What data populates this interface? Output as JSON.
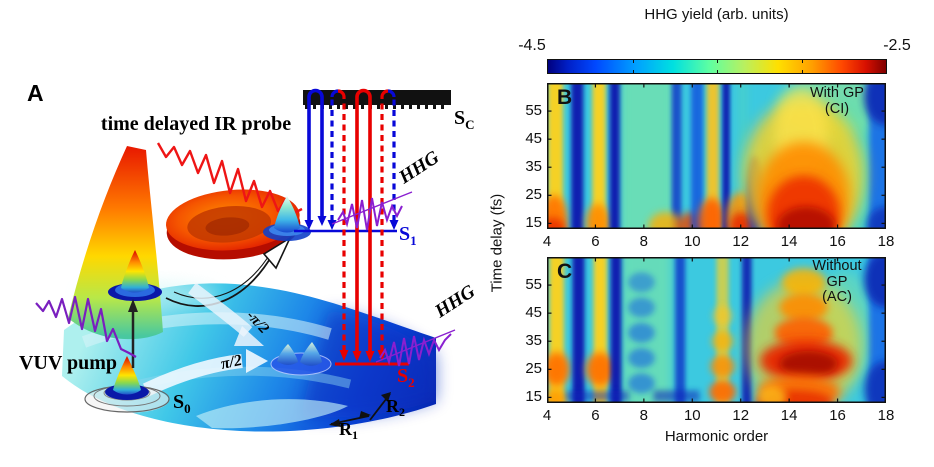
{
  "panel_a": {
    "label": "A",
    "ir_probe_label": "time delayed IR probe",
    "vuv_pump_label": "VUV pump",
    "hhg_upper": "HHG",
    "hhg_lower": "HHG",
    "phase_upper": "-π/2",
    "phase_lower": "π/2",
    "s0": {
      "main": "S",
      "sub": "0"
    },
    "s1": {
      "main": "S",
      "sub": "1"
    },
    "s2": {
      "main": "S",
      "sub": "2"
    },
    "sc": {
      "main": "S",
      "sub": "C"
    },
    "r1": {
      "main": "R",
      "sub": "1"
    },
    "r2": {
      "main": "R",
      "sub": "2"
    },
    "colors": {
      "s1_level": "#0808d8",
      "s2_level": "#e80000",
      "pulse_purple": "#7a1fbf",
      "ir_probe_red": "#ee1515"
    }
  },
  "colorbar": {
    "title": "HHG yield (arb. units)",
    "min": "-4.5",
    "max": "-2.5"
  },
  "panel_b": {
    "label": "B",
    "annotation": [
      "With GP",
      "(CI)"
    ]
  },
  "panel_c": {
    "label": "C",
    "annotation": [
      "Without",
      "GP",
      "(AC)"
    ]
  },
  "axes": {
    "x_title": "Harmonic order",
    "y_title": "Time delay (fs)"
  },
  "chart_data": [
    {
      "type": "heatmap",
      "panel": "B",
      "condition": "With GP (CI)",
      "xlabel": "Harmonic order",
      "ylabel": "Time delay (fs)",
      "xlim": [
        4,
        18
      ],
      "ylim": [
        13,
        65
      ],
      "x_ticks": [
        4,
        6,
        8,
        10,
        12,
        14,
        16,
        18
      ],
      "y_ticks": [
        15,
        25,
        35,
        45,
        55
      ],
      "colorbar_label": "HHG yield (arb. units)",
      "colorbar_log10_range": [
        -4.5,
        -2.5
      ],
      "description": "Smooth vertical interference stripes, no beating along delay; bright yellow stripes near harmonics 4.4, 6.1, 10.9; dark blue stripes near 5.3, 6.8, 9.4, 11.4; broad smooth red maximum (~-2.5) fanning around harmonic 14.5 for delays 13-40 fs; dark blue at right edge 17.5-18.",
      "base_color": "#3cc9e0",
      "layers": [
        {
          "t": "stripe",
          "h": 8.15,
          "w": 2.3,
          "c": "#7ce6a6",
          "o": 0.7,
          "b": 5
        },
        {
          "t": "blob",
          "h": 15.9,
          "d": 57,
          "rh": 2.4,
          "rd": 11,
          "c": "#8fe49a",
          "o": 0.7,
          "b": 6
        },
        {
          "t": "blob",
          "h": 16.6,
          "d": 35,
          "rh": 1.1,
          "rd": 26,
          "c": "#62dfae",
          "o": 0.55,
          "b": 6
        },
        {
          "t": "stripe",
          "h": 17.8,
          "w": 1.0,
          "c": "#1465e8",
          "o": 0.85,
          "b": 3
        },
        {
          "t": "blob",
          "h": 18.0,
          "d": 60,
          "rh": 0.9,
          "rd": 10,
          "c": "#0a2bb4",
          "o": 0.9,
          "b": 4
        },
        {
          "t": "blob",
          "h": 18.0,
          "d": 14,
          "rh": 0.8,
          "rd": 7,
          "c": "#0a2bb4",
          "o": 0.75,
          "b": 4
        },
        {
          "t": "stripe",
          "h": 12.1,
          "w": 0.5,
          "c": "#49d0c8",
          "o": 0.6,
          "b": 3
        },
        {
          "t": "stripe",
          "h": 4.35,
          "w": 0.62,
          "c": "#ffd21e",
          "o": 0.95,
          "b": 2.5
        },
        {
          "t": "blob",
          "h": 4.3,
          "d": 16,
          "rh": 0.55,
          "rd": 9,
          "c": "#ff7300",
          "o": 0.9,
          "b": 4
        },
        {
          "t": "blob",
          "h": 4.25,
          "d": 13,
          "rh": 0.5,
          "rd": 4,
          "c": "#e83000",
          "o": 0.9,
          "b": 4
        },
        {
          "t": "stripe",
          "h": 5.25,
          "w": 0.5,
          "c": "#0718ae",
          "o": 0.95,
          "b": 2
        },
        {
          "t": "stripe",
          "h": 6.15,
          "w": 0.55,
          "c": "#ffd21e",
          "o": 0.95,
          "b": 2.5
        },
        {
          "t": "blob",
          "h": 6.1,
          "d": 15,
          "rh": 0.5,
          "rd": 7,
          "c": "#ff8c00",
          "o": 0.9,
          "b": 4
        },
        {
          "t": "stripe",
          "h": 6.8,
          "w": 0.42,
          "c": "#0718ae",
          "o": 0.95,
          "b": 2
        },
        {
          "t": "stripe",
          "h": 9.35,
          "w": 0.4,
          "c": "#0a30c8",
          "o": 0.8,
          "b": 2
        },
        {
          "t": "blob",
          "h": 8.9,
          "d": 14,
          "rh": 0.7,
          "rd": 5,
          "c": "#ffae00",
          "o": 0.8,
          "b": 4
        },
        {
          "t": "blob",
          "h": 9.9,
          "d": 14,
          "rh": 0.5,
          "rd": 5,
          "c": "#e84400",
          "o": 0.8,
          "b": 4
        },
        {
          "t": "stripe",
          "h": 10.2,
          "w": 0.5,
          "c": "#0d47dd",
          "o": 0.75,
          "b": 2.5
        },
        {
          "t": "stripe",
          "h": 10.85,
          "w": 0.5,
          "c": "#ffc41e",
          "o": 0.9,
          "b": 2.5
        },
        {
          "t": "blob",
          "h": 10.8,
          "d": 16,
          "rh": 0.55,
          "rd": 8,
          "c": "#ff5e00",
          "o": 0.9,
          "b": 4
        },
        {
          "t": "stripe",
          "h": 11.4,
          "w": 0.32,
          "c": "#0718ae",
          "o": 0.9,
          "b": 1.8
        },
        {
          "t": "blob",
          "h": 12.0,
          "d": 17,
          "rh": 0.6,
          "rd": 9,
          "c": "#ff9000",
          "o": 0.85,
          "b": 4
        },
        {
          "t": "blob",
          "h": 12.05,
          "d": 14,
          "rh": 0.5,
          "rd": 5,
          "c": "#e82800",
          "o": 0.85,
          "b": 4
        },
        {
          "t": "blob",
          "h": 12.6,
          "d": 24,
          "rh": 0.35,
          "rd": 15,
          "c": "#0a23b8",
          "o": 0.8,
          "b": 3
        },
        {
          "t": "blob",
          "h": 13.15,
          "d": 19,
          "rh": 0.3,
          "rd": 11,
          "c": "#0a23b8",
          "o": 0.75,
          "b": 3
        },
        {
          "t": "blob",
          "h": 14.6,
          "d": 32,
          "rh": 2.5,
          "rd": 27,
          "c": "#ffd21e",
          "o": 0.8,
          "b": 7
        },
        {
          "t": "blob",
          "h": 14.5,
          "d": 47,
          "rh": 1.1,
          "rd": 16,
          "c": "#ffe44e",
          "o": 0.7,
          "b": 6
        },
        {
          "t": "blob",
          "h": 14.6,
          "d": 24,
          "rh": 1.9,
          "rd": 20,
          "c": "#ff8c00",
          "o": 0.9,
          "b": 6
        },
        {
          "t": "blob",
          "h": 14.6,
          "d": 18,
          "rh": 1.5,
          "rd": 14,
          "c": "#ee3300",
          "o": 0.92,
          "b": 5
        },
        {
          "t": "blob",
          "h": 14.7,
          "d": 14,
          "rh": 1.2,
          "rd": 7,
          "c": "#b30f00",
          "o": 0.9,
          "b": 4
        }
      ]
    },
    {
      "type": "heatmap",
      "panel": "C",
      "condition": "Without GP (AC)",
      "xlabel": "Harmonic order",
      "ylabel": "Time delay (fs)",
      "xlim": [
        4,
        18
      ],
      "ylim": [
        13,
        65
      ],
      "x_ticks": [
        4,
        6,
        8,
        10,
        12,
        14,
        16,
        18
      ],
      "y_ticks": [
        15,
        25,
        35,
        45,
        55
      ],
      "colorbar_label": "HHG yield (arb. units)",
      "colorbar_log10_range": [
        -4.5,
        -2.5
      ],
      "description": "Same stripe positions as panel B but modulated into beads along time delay (beat period ~9-10 fs); orange maxima at delay ~25 fs on harmonics 4.4 and 6.2; beaded red/orange column at harmonic ~14.6 with strongest dark-red blob at delay 25-30 fs; dark blue at right edge 17.5-18.",
      "base_color": "#3cc9e0",
      "layers": [
        {
          "t": "stripe",
          "h": 8.1,
          "w": 2.1,
          "c": "#7ce6a6",
          "o": 0.65,
          "b": 5
        },
        {
          "t": "blob",
          "h": 16.3,
          "d": 40,
          "rh": 1.2,
          "rd": 20,
          "c": "#7adfa8",
          "o": 0.55,
          "b": 6
        },
        {
          "t": "stripe",
          "h": 17.8,
          "w": 1.0,
          "c": "#1465e8",
          "o": 0.85,
          "b": 3
        },
        {
          "t": "blob",
          "h": 18.0,
          "d": 57,
          "rh": 0.9,
          "rd": 10,
          "c": "#0a2bb4",
          "o": 0.9,
          "b": 4
        },
        {
          "t": "blob",
          "h": 18.0,
          "d": 18,
          "rh": 0.9,
          "rd": 10,
          "c": "#0a2bb4",
          "o": 0.8,
          "b": 4
        },
        {
          "t": "stripe",
          "h": 4.4,
          "w": 0.6,
          "c": "#ffd21e",
          "o": 0.95,
          "b": 2.5
        },
        {
          "t": "blob",
          "h": 4.4,
          "d": 25,
          "rh": 0.55,
          "rd": 6,
          "c": "#ff7300",
          "o": 0.95,
          "b": 4
        },
        {
          "t": "blob",
          "h": 4.35,
          "d": 14.5,
          "rh": 0.5,
          "rd": 3.5,
          "c": "#ff9a00",
          "o": 0.85,
          "b": 4
        },
        {
          "t": "stripe",
          "h": 5.3,
          "w": 0.5,
          "c": "#0718ae",
          "o": 0.95,
          "b": 2
        },
        {
          "t": "stripe",
          "h": 6.2,
          "w": 0.55,
          "c": "#ffd21e",
          "o": 0.95,
          "b": 2.5
        },
        {
          "t": "blob",
          "h": 6.2,
          "d": 25,
          "rh": 0.6,
          "rd": 6,
          "c": "#ff7300",
          "o": 0.95,
          "b": 4
        },
        {
          "t": "stripe",
          "h": 6.85,
          "w": 0.45,
          "c": "#0718ae",
          "o": 0.95,
          "b": 2
        },
        {
          "t": "blob",
          "h": 7.9,
          "d": 20,
          "rh": 0.55,
          "rd": 3.5,
          "c": "#1565e0",
          "o": 0.6,
          "b": 3
        },
        {
          "t": "blob",
          "h": 7.9,
          "d": 29,
          "rh": 0.55,
          "rd": 3.5,
          "c": "#1565e0",
          "o": 0.6,
          "b": 3
        },
        {
          "t": "blob",
          "h": 7.9,
          "d": 38,
          "rh": 0.55,
          "rd": 3.5,
          "c": "#1565e0",
          "o": 0.6,
          "b": 3
        },
        {
          "t": "blob",
          "h": 7.9,
          "d": 47,
          "rh": 0.55,
          "rd": 3.5,
          "c": "#1565e0",
          "o": 0.55,
          "b": 3
        },
        {
          "t": "blob",
          "h": 7.9,
          "d": 56,
          "rh": 0.55,
          "rd": 3.5,
          "c": "#1565e0",
          "o": 0.5,
          "b": 3
        },
        {
          "t": "stripe",
          "h": 9.5,
          "w": 0.42,
          "c": "#0a30c8",
          "o": 0.8,
          "b": 2
        },
        {
          "t": "hband",
          "h1": 4.8,
          "h2": 7.4,
          "d": 15.5,
          "rd": 1.8,
          "c": "#0a23b8",
          "o": 0.5,
          "b": 3
        },
        {
          "t": "hband",
          "h1": 8.4,
          "h2": 10.3,
          "d": 15.5,
          "rd": 2.0,
          "c": "#0a23b8",
          "o": 0.55,
          "b": 3
        },
        {
          "t": "stripe",
          "h": 11.25,
          "w": 0.5,
          "c": "#ffd21e",
          "o": 0.7,
          "b": 2.5
        },
        {
          "t": "blob",
          "h": 11.25,
          "d": 17,
          "rh": 0.55,
          "rd": 4,
          "c": "#ff6a00",
          "o": 0.9,
          "b": 3.5
        },
        {
          "t": "blob",
          "h": 11.25,
          "d": 26,
          "rh": 0.5,
          "rd": 4,
          "c": "#ff8c00",
          "o": 0.8,
          "b": 3.5
        },
        {
          "t": "blob",
          "h": 11.25,
          "d": 35,
          "rh": 0.45,
          "rd": 3.5,
          "c": "#ffae00",
          "o": 0.7,
          "b": 3.5
        },
        {
          "t": "blob",
          "h": 11.25,
          "d": 44,
          "rh": 0.4,
          "rd": 3.5,
          "c": "#ffc41e",
          "o": 0.6,
          "b": 3.5
        },
        {
          "t": "stripe",
          "h": 12.25,
          "w": 0.4,
          "c": "#0718ae",
          "o": 0.85,
          "b": 2
        },
        {
          "t": "blob",
          "h": 14.6,
          "d": 33,
          "rh": 2.4,
          "rd": 24,
          "c": "#ffd21e",
          "o": 0.6,
          "b": 7
        },
        {
          "t": "blob",
          "h": 14.6,
          "d": 56,
          "rh": 0.9,
          "rd": 5,
          "c": "#ffb300",
          "o": 0.85,
          "b": 4
        },
        {
          "t": "blob",
          "h": 14.6,
          "d": 47,
          "rh": 1.0,
          "rd": 5,
          "c": "#ff8c00",
          "o": 0.9,
          "b": 4
        },
        {
          "t": "blob",
          "h": 14.6,
          "d": 38,
          "rh": 1.2,
          "rd": 5.5,
          "c": "#ff5e00",
          "o": 0.9,
          "b": 4
        },
        {
          "t": "blob",
          "h": 14.7,
          "d": 28,
          "rh": 1.9,
          "rd": 7.5,
          "c": "#e82800",
          "o": 0.95,
          "b": 5
        },
        {
          "t": "blob",
          "h": 14.8,
          "d": 27,
          "rh": 1.2,
          "rd": 4.5,
          "c": "#a50f00",
          "o": 0.9,
          "b": 4
        },
        {
          "t": "blob",
          "h": 14.4,
          "d": 17,
          "rh": 1.7,
          "rd": 6,
          "c": "#ff6a00",
          "o": 0.9,
          "b": 5
        },
        {
          "t": "blob",
          "h": 14.2,
          "d": 13.5,
          "rh": 1.6,
          "rd": 4,
          "c": "#e83000",
          "o": 0.9,
          "b": 4
        },
        {
          "t": "blob",
          "h": 13.3,
          "d": 15,
          "rh": 0.6,
          "rd": 4,
          "c": "#ffd21e",
          "o": 0.7,
          "b": 4
        }
      ]
    }
  ]
}
